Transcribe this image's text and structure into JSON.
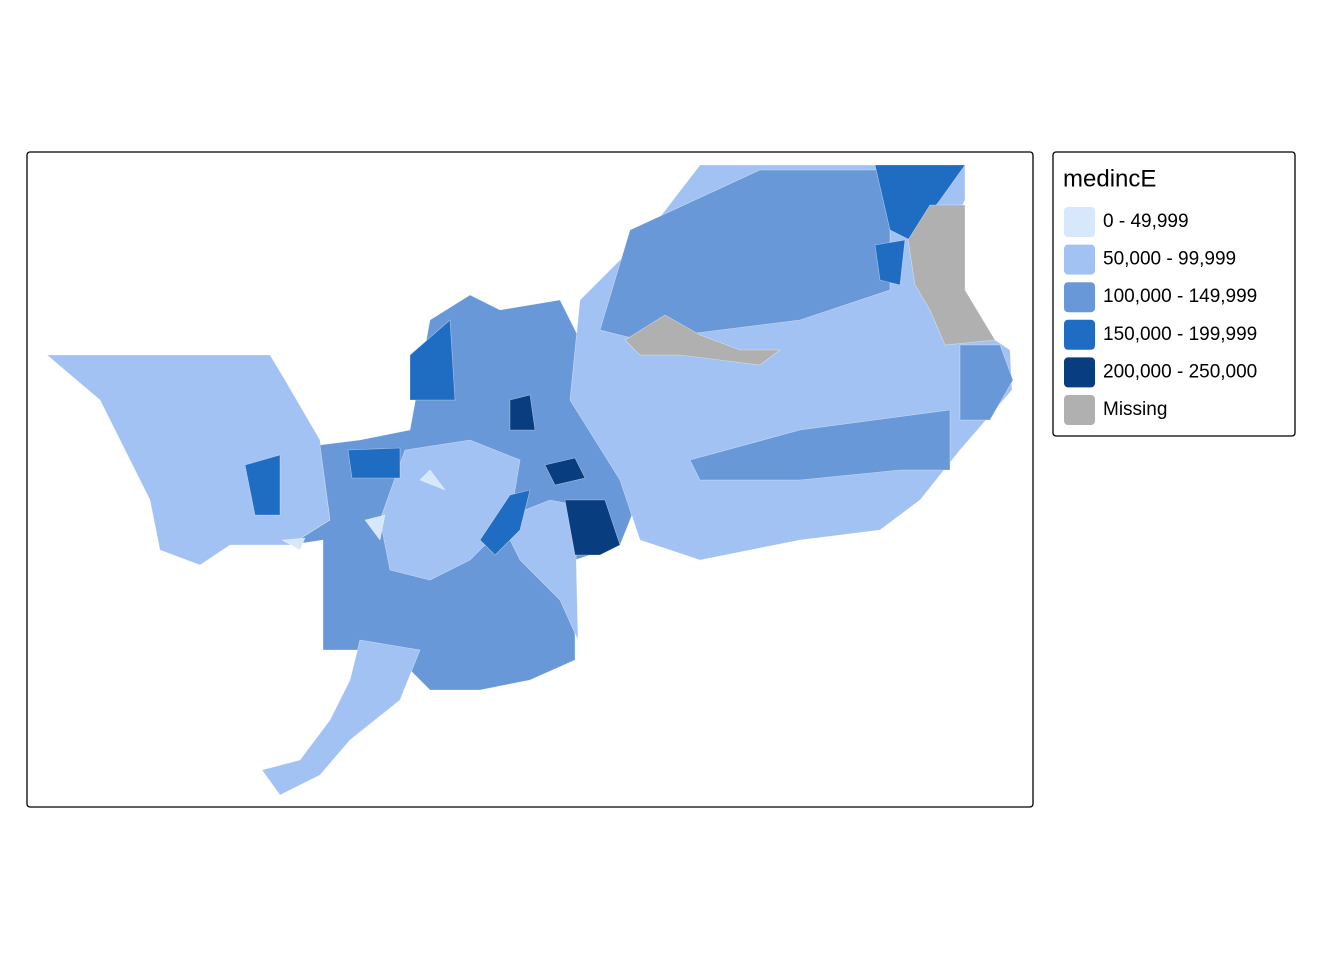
{
  "legend": {
    "title": "medincE",
    "items": [
      {
        "label": "0 - 49,999",
        "color": "#d7e7fc"
      },
      {
        "label": "50,000 - 99,999",
        "color": "#a2c2f4"
      },
      {
        "label": "100,000 - 149,999",
        "color": "#6898d8"
      },
      {
        "label": "150,000 - 199,999",
        "color": "#1f6dc2"
      },
      {
        "label": "200,000 - 250,000",
        "color": "#083d7f"
      },
      {
        "label": "Missing",
        "color": "#b0b0b0"
      }
    ]
  }
}
